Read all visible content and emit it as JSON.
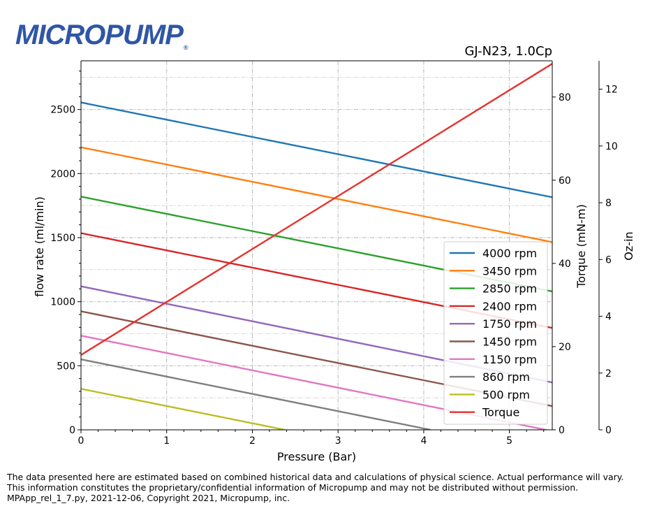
{
  "brand": {
    "logo_text": "MICROPUMP",
    "logo_mark": "®",
    "color": "#2f56a6"
  },
  "chart_data": {
    "type": "line",
    "title": "GJ-N23,  1.0Cp",
    "xlabel": "Pressure (Bar)",
    "ylabel": "flow rate (ml/min)",
    "y2label": "Torque (mN-m)",
    "y3label": "Oz-in",
    "xlim": [
      0,
      5.5
    ],
    "ylim": [
      0,
      2880
    ],
    "y2lim": [
      0,
      88.7
    ],
    "y3lim": [
      0,
      13.0
    ],
    "xticks": [
      0,
      1,
      2,
      3,
      4,
      5
    ],
    "yticks": [
      0,
      500,
      1000,
      1500,
      2000,
      2500
    ],
    "y2ticks": [
      0,
      20,
      40,
      60,
      80
    ],
    "y3ticks": [
      0,
      2,
      4,
      6,
      8,
      10,
      12
    ],
    "grid": true,
    "legend_position": "lower-right",
    "series": [
      {
        "name": "4000 rpm",
        "color": "#1f77b4",
        "axis": "flow",
        "x": [
          0,
          5.5
        ],
        "y": [
          2555,
          1815
        ]
      },
      {
        "name": "3450 rpm",
        "color": "#ff7f0e",
        "axis": "flow",
        "x": [
          0,
          5.5
        ],
        "y": [
          2205,
          1465
        ]
      },
      {
        "name": "2850 rpm",
        "color": "#2ca02c",
        "axis": "flow",
        "x": [
          0,
          5.5
        ],
        "y": [
          1820,
          1080
        ]
      },
      {
        "name": "2400 rpm",
        "color": "#d62728",
        "axis": "flow",
        "x": [
          0,
          5.5
        ],
        "y": [
          1535,
          795
        ]
      },
      {
        "name": "1750 rpm",
        "color": "#9467bd",
        "axis": "flow",
        "x": [
          0,
          5.5
        ],
        "y": [
          1120,
          370
        ]
      },
      {
        "name": "1450 rpm",
        "color": "#8c564b",
        "axis": "flow",
        "x": [
          0,
          5.5
        ],
        "y": [
          925,
          185
        ]
      },
      {
        "name": "1150 rpm",
        "color": "#e377c2",
        "axis": "flow",
        "x": [
          0,
          5.5
        ],
        "y": [
          735,
          -10
        ]
      },
      {
        "name": "860 rpm",
        "color": "#7f7f7f",
        "axis": "flow",
        "x": [
          0,
          4.08
        ],
        "y": [
          550,
          0
        ]
      },
      {
        "name": "500 rpm",
        "color": "#bcbd22",
        "axis": "flow",
        "x": [
          0,
          2.38
        ],
        "y": [
          320,
          0
        ]
      },
      {
        "name": "Torque",
        "color": "#e5322d",
        "axis": "torque",
        "x": [
          0,
          5.5
        ],
        "y": [
          18.0,
          88.0
        ]
      }
    ]
  },
  "footer": {
    "line1": "The data presented here are estimated based on combined historical data and calculations of physical science.  Actual performance will vary.",
    "line2": "This information constitutes the proprietary/confidential information of Micropump and may not be distributed without permission.",
    "line3": "MPApp_rel_1_7.py, 2021-12-06, Copyright 2021, Micropump, inc."
  }
}
